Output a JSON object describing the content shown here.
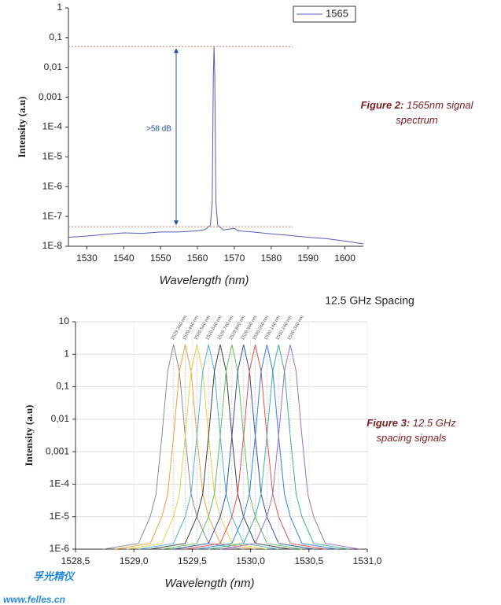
{
  "chart_data": [
    {
      "type": "line",
      "y_label": "Intensity (a.u)",
      "x_label": "Wavelength (nm)",
      "xlim": [
        1525,
        1605
      ],
      "xticks": [
        1530,
        1540,
        1550,
        1560,
        1570,
        1580,
        1590,
        1600
      ],
      "ylim": [
        1e-08,
        1
      ],
      "log_y": true,
      "yticks": [
        1,
        {
          "value": 0.1,
          "label": "0,1"
        },
        {
          "value": 0.01,
          "label": "0,01"
        },
        {
          "value": 0.001,
          "label": "0,001"
        },
        {
          "value": 0.0001,
          "label": "1E-4"
        },
        {
          "value": 1e-05,
          "label": "1E-5"
        },
        {
          "value": 1e-06,
          "label": "1E-6"
        },
        {
          "value": 1e-07,
          "label": "1E-7"
        },
        {
          "value": 1e-08,
          "label": "1E-8"
        }
      ],
      "grid": false,
      "legend": "top-right",
      "hlines": [
        0.05,
        4.5e-08
      ],
      "hline_color": "#e8735a",
      "annotation": ">58 dB",
      "series": [
        {
          "name": "1565",
          "color": "#5a5ab4",
          "x": [
            1525,
            1530,
            1535,
            1540,
            1545,
            1550,
            1555,
            1560,
            1562,
            1563.5,
            1564,
            1564.3,
            1564.5,
            1564.7,
            1565,
            1565.5,
            1567,
            1570,
            1571,
            1575,
            1580,
            1585,
            1590,
            1595,
            1600,
            1605
          ],
          "values": [
            2e-08,
            2.2e-08,
            2.5e-08,
            2.8e-08,
            2.7e-08,
            3e-08,
            3e-08,
            3.3e-08,
            3.6e-08,
            5e-08,
            3e-07,
            0.005,
            0.05,
            0.005,
            3e-07,
            5e-08,
            3.5e-08,
            4e-08,
            3.3e-08,
            3e-08,
            2.6e-08,
            2.3e-08,
            2e-08,
            1.8e-08,
            1.5e-08,
            1.2e-08
          ]
        }
      ]
    },
    {
      "type": "line",
      "title": "12.5 GHz Spacing",
      "y_label": "Intensity (a.u)",
      "x_label": "Wavelength (nm)",
      "xlim": [
        1528.5,
        1531
      ],
      "xticks": [
        {
          "value": 1528.5,
          "label": "1528,5"
        },
        {
          "value": 1529,
          "label": "1529,0"
        },
        {
          "value": 1529.5,
          "label": "1529,5"
        },
        {
          "value": 1530,
          "label": "1530,0"
        },
        {
          "value": 1530.5,
          "label": "1530,5"
        },
        {
          "value": 1531,
          "label": "1531,0"
        }
      ],
      "ylim": [
        1e-06,
        10
      ],
      "log_y": true,
      "yticks": [
        10,
        1,
        {
          "value": 0.1,
          "label": "0,1"
        },
        {
          "value": 0.01,
          "label": "0,01"
        },
        {
          "value": 0.001,
          "label": "0,001"
        },
        {
          "value": 0.0001,
          "label": "1E-4"
        },
        {
          "value": 1e-05,
          "label": "1E-5"
        },
        {
          "value": 1e-06,
          "label": "1E-6"
        }
      ],
      "grid": true,
      "series": [
        {
          "name": "1529.340 nm",
          "color": "#8c8c8c",
          "x": [
            1528.74,
            1529.04,
            1529.14,
            1529.19,
            1529.24,
            1529.29,
            1529.34,
            1529.39,
            1529.44,
            1529.49,
            1529.54,
            1529.64,
            1529.94
          ],
          "values": [
            1e-06,
            1.5e-06,
            1e-05,
            5e-05,
            0.003,
            0.3,
            2,
            0.3,
            0.003,
            5e-05,
            1e-05,
            1.5e-06,
            1e-06
          ]
        },
        {
          "name": "1529.440 nm",
          "color": "#f0a040",
          "x": [
            1528.84,
            1529.14,
            1529.24,
            1529.29,
            1529.34,
            1529.39,
            1529.44,
            1529.49,
            1529.54,
            1529.59,
            1529.64,
            1529.74,
            1530.04
          ],
          "values": [
            1e-06,
            1.5e-06,
            1e-05,
            5e-05,
            0.003,
            0.3,
            2,
            0.3,
            0.003,
            5e-05,
            1e-05,
            1.5e-06,
            1e-06
          ]
        },
        {
          "name": "1529.540 nm",
          "color": "#e8d040",
          "x": [
            1528.94,
            1529.24,
            1529.34,
            1529.39,
            1529.44,
            1529.49,
            1529.54,
            1529.59,
            1529.64,
            1529.69,
            1529.74,
            1529.84,
            1530.14
          ],
          "values": [
            1e-06,
            1.5e-06,
            1e-05,
            5e-05,
            0.003,
            0.3,
            2,
            0.3,
            0.003,
            5e-05,
            1e-05,
            1.5e-06,
            1e-06
          ]
        },
        {
          "name": "1529.640 nm",
          "color": "#50b0e0",
          "x": [
            1529.04,
            1529.34,
            1529.44,
            1529.49,
            1529.54,
            1529.59,
            1529.64,
            1529.69,
            1529.74,
            1529.79,
            1529.84,
            1529.94,
            1530.24
          ],
          "values": [
            1e-06,
            1.5e-06,
            1e-05,
            5e-05,
            0.003,
            0.3,
            2,
            0.3,
            0.003,
            5e-05,
            1e-05,
            1.5e-06,
            1e-06
          ]
        },
        {
          "name": "1529.740 nm",
          "color": "#404040",
          "x": [
            1529.14,
            1529.44,
            1529.54,
            1529.59,
            1529.64,
            1529.69,
            1529.74,
            1529.79,
            1529.84,
            1529.89,
            1529.94,
            1530.04,
            1530.34
          ],
          "values": [
            1e-06,
            1.5e-06,
            1e-05,
            5e-05,
            0.003,
            0.3,
            2,
            0.3,
            0.003,
            5e-05,
            1e-05,
            1.5e-06,
            1e-06
          ]
        },
        {
          "name": "1529.840 nm",
          "color": "#60c060",
          "x": [
            1529.24,
            1529.54,
            1529.64,
            1529.69,
            1529.74,
            1529.79,
            1529.84,
            1529.89,
            1529.94,
            1529.99,
            1530.04,
            1530.14,
            1530.44
          ],
          "values": [
            1e-06,
            1.5e-06,
            1e-05,
            5e-05,
            0.003,
            0.3,
            2,
            0.3,
            0.003,
            5e-05,
            1e-05,
            1.5e-06,
            1e-06
          ]
        },
        {
          "name": "1529.940 nm",
          "color": "#3050a0",
          "x": [
            1529.34,
            1529.64,
            1529.74,
            1529.79,
            1529.84,
            1529.89,
            1529.94,
            1529.99,
            1530.04,
            1530.09,
            1530.14,
            1530.24,
            1530.54
          ],
          "values": [
            1e-06,
            1.5e-06,
            1e-05,
            5e-05,
            0.003,
            0.3,
            2,
            0.3,
            0.003,
            5e-05,
            1e-05,
            1.5e-06,
            1e-06
          ]
        },
        {
          "name": "1530.040 nm",
          "color": "#e05050",
          "x": [
            1529.44,
            1529.74,
            1529.84,
            1529.89,
            1529.94,
            1529.99,
            1530.04,
            1530.09,
            1530.14,
            1530.19,
            1530.24,
            1530.34,
            1530.64
          ],
          "values": [
            1e-06,
            1.5e-06,
            1e-05,
            5e-05,
            0.003,
            0.3,
            2,
            0.3,
            0.003,
            5e-05,
            1e-05,
            1.5e-06,
            1e-06
          ]
        },
        {
          "name": "1530.140 nm",
          "color": "#3080e0",
          "x": [
            1529.54,
            1529.84,
            1529.94,
            1529.99,
            1530.04,
            1530.09,
            1530.14,
            1530.19,
            1530.24,
            1530.29,
            1530.34,
            1530.44,
            1530.74
          ],
          "values": [
            1e-06,
            1.5e-06,
            1e-05,
            5e-05,
            0.003,
            0.3,
            2,
            0.3,
            0.003,
            5e-05,
            1e-05,
            1.5e-06,
            1e-06
          ]
        },
        {
          "name": "1530.240 nm",
          "color": "#40b090",
          "x": [
            1529.64,
            1529.94,
            1530.04,
            1530.09,
            1530.14,
            1530.19,
            1530.24,
            1530.29,
            1530.34,
            1530.39,
            1530.44,
            1530.54,
            1530.84
          ],
          "values": [
            1e-06,
            1.5e-06,
            1e-05,
            5e-05,
            0.003,
            0.3,
            2,
            0.3,
            0.003,
            5e-05,
            1e-05,
            1.5e-06,
            1e-06
          ]
        },
        {
          "name": "1530.340 nm",
          "color": "#a070c0",
          "x": [
            1529.74,
            1530.04,
            1530.14,
            1530.19,
            1530.24,
            1530.29,
            1530.34,
            1530.39,
            1530.44,
            1530.49,
            1530.54,
            1530.64,
            1530.94
          ],
          "values": [
            1e-06,
            1.5e-06,
            1e-05,
            5e-05,
            0.003,
            0.3,
            2,
            0.3,
            0.003,
            5e-05,
            1e-05,
            1.5e-06,
            1e-06
          ]
        }
      ]
    }
  ],
  "captions": [
    {
      "label": "Figure 2:",
      "text": "1565nm signal spectrum"
    },
    {
      "label": "Figure 3:",
      "text": "12.5 GHz spacing signals"
    }
  ],
  "watermark": {
    "brand": "孚光精仪",
    "url": "www.felles.cn"
  }
}
